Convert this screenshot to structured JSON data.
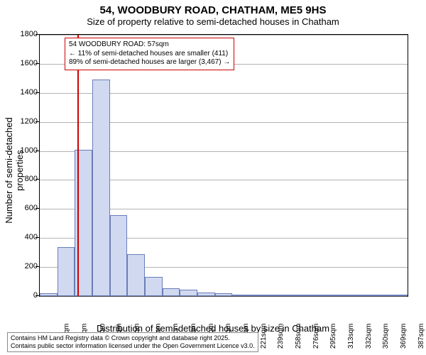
{
  "title_main": "54, WOODBURY ROAD, CHATHAM, ME5 9HS",
  "title_sub": "Size of property relative to semi-detached houses in Chatham",
  "y_axis_label": "Number of semi-detached properties",
  "x_axis_label": "Distribution of semi-detached houses by size in Chatham",
  "chart": {
    "type": "histogram",
    "ylim": [
      0,
      1800
    ],
    "yticks": [
      0,
      200,
      400,
      600,
      800,
      1000,
      1200,
      1400,
      1600,
      1800
    ],
    "x_categories": [
      "18sqm",
      "36sqm",
      "55sqm",
      "73sqm",
      "92sqm",
      "110sqm",
      "129sqm",
      "147sqm",
      "166sqm",
      "184sqm",
      "203sqm",
      "221sqm",
      "239sqm",
      "258sqm",
      "276sqm",
      "295sqm",
      "313sqm",
      "332sqm",
      "350sqm",
      "369sqm",
      "387sqm"
    ],
    "bars": [
      20,
      340,
      1010,
      1490,
      560,
      290,
      130,
      55,
      45,
      25,
      20,
      10,
      3,
      2,
      2,
      1,
      1,
      1,
      1,
      1,
      1
    ],
    "bar_fill": "#d0d9f0",
    "bar_stroke": "#6b7db8",
    "grid_color": "#808080",
    "background_color": "#ffffff",
    "marker_x_index": 2.15,
    "marker_color": "#cc0000",
    "title_fontsize": 15,
    "label_fontsize": 13,
    "tick_fontsize": 11
  },
  "info_box": {
    "line1": "54 WOODBURY ROAD: 57sqm",
    "line2": "← 11% of semi-detached houses are smaller (411)",
    "line3": "89% of semi-detached houses are larger (3,467) →",
    "border_color": "#cc0000"
  },
  "footer": {
    "line1": "Contains HM Land Registry data © Crown copyright and database right 2025.",
    "line2": "Contains public sector information licensed under the Open Government Licence v3.0."
  }
}
